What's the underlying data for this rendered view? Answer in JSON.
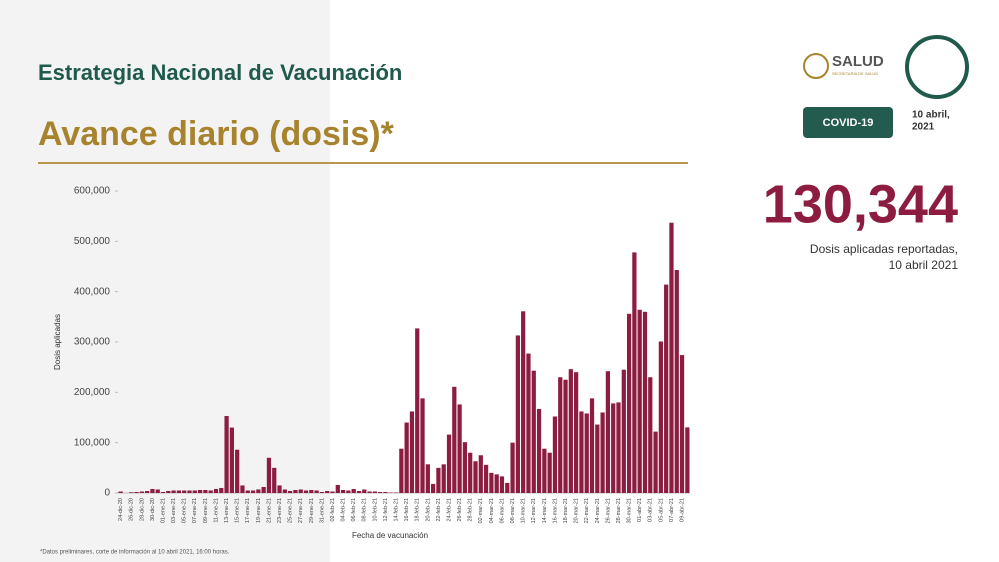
{
  "header": {
    "title": "Estrategia Nacional de Vacunación",
    "subtitle": "Avance diario (dosis)*",
    "agency": "SALUD",
    "agency_sub": "SECRETARÍA DE SALUD",
    "badge": "COVID-19",
    "date_lines": [
      "10 abril,",
      "2021"
    ]
  },
  "highlight": {
    "number": "130,344",
    "caption_lines": [
      "Dosis aplicadas reportadas,",
      "10 abril 2021"
    ]
  },
  "footnote": "*Datos preliminares, corte de información al 10 abril 2021, 16:00 horas.",
  "chart_data": {
    "type": "bar",
    "color": "#8c1d40",
    "x_label": "Fecha de vacunación",
    "y_label": "Dosis aplicadas",
    "ylim": [
      0,
      600000
    ],
    "yticks": [
      0,
      {
        "value": 100000,
        "label": "100,000"
      },
      {
        "value": 200000,
        "label": "200,000"
      },
      {
        "value": 300000,
        "label": "300,000"
      },
      {
        "value": 400000,
        "label": "400,000"
      },
      {
        "value": 500000,
        "label": "500,000"
      },
      {
        "value": 600000,
        "label": "600,000"
      }
    ],
    "categories": [
      "24-dic-20",
      null,
      "26-dic-20",
      null,
      "28-dic-20",
      null,
      "30-dic-20",
      null,
      "01-ene-21",
      null,
      "03-ene-21",
      null,
      "05-ene-21",
      null,
      "07-ene-21",
      null,
      "09-ene-21",
      null,
      "11-ene-21",
      null,
      "13-ene-21",
      null,
      "15-ene-21",
      null,
      "17-ene-21",
      null,
      "19-ene-21",
      null,
      "21-ene-21",
      null,
      "23-ene-21",
      null,
      "25-ene-21",
      null,
      "27-ene-21",
      null,
      "29-ene-21",
      null,
      "31-ene-21",
      null,
      "02-feb-21",
      null,
      "04-feb-21",
      null,
      "06-feb-21",
      null,
      "08-feb-21",
      null,
      "10-feb-21",
      null,
      "12-feb-21",
      null,
      "14-feb-21",
      null,
      "16-feb-21",
      null,
      "18-feb-21",
      null,
      "20-feb-21",
      null,
      "22-feb-21",
      null,
      "24-feb-21",
      null,
      "26-feb-21",
      null,
      "28-feb-21",
      null,
      "02-mar-21",
      null,
      "04-mar-21",
      null,
      "06-mar-21",
      null,
      "08-mar-21",
      null,
      "10-mar-21",
      null,
      "12-mar-21",
      null,
      "14-mar-21",
      null,
      "16-mar-21",
      null,
      "18-mar-21",
      null,
      "20-mar-21",
      null,
      "22-mar-21",
      null,
      "24-mar-21",
      null,
      "26-mar-21",
      null,
      "28-mar-21",
      null,
      "30-mar-21",
      null,
      "01-abr-21",
      null,
      "03-abr-21",
      null,
      "05-abr-21",
      null,
      "07-abr-21",
      null,
      "09-abr-21",
      null
    ],
    "values": [
      2900,
      0,
      1500,
      2000,
      3000,
      4000,
      8000,
      7000,
      2000,
      4000,
      5000,
      5000,
      5000,
      5000,
      5000,
      6000,
      6000,
      5000,
      8000,
      10000,
      153000,
      130000,
      86000,
      15000,
      5000,
      5000,
      7000,
      12000,
      70000,
      50000,
      15000,
      7000,
      4000,
      6000,
      7000,
      5000,
      6000,
      5000,
      2000,
      4000,
      3000,
      16000,
      6000,
      5000,
      8000,
      4000,
      7000,
      3000,
      3000,
      2000,
      2000,
      1000,
      1000,
      88000,
      140000,
      162000,
      327000,
      188000,
      57000,
      18000,
      50000,
      57000,
      116000,
      211000,
      176000,
      101000,
      80000,
      63000,
      75000,
      56000,
      40000,
      37000,
      33000,
      20000,
      100000,
      313000,
      361000,
      277000,
      243000,
      167000,
      88000,
      80000,
      152000,
      230000,
      225000,
      246000,
      240000,
      162000,
      158000,
      188000,
      136000,
      160000,
      242000,
      178000,
      180000,
      245000,
      356000,
      478000,
      364000,
      360000,
      230000,
      122000,
      301000,
      414000,
      537000,
      443000,
      274000,
      130344
    ]
  }
}
